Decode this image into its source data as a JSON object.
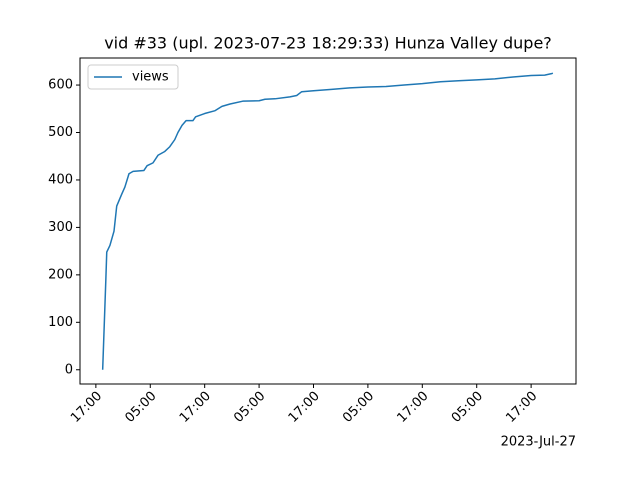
{
  "chart_data": {
    "type": "line",
    "title": "vid #33 (upl. 2023-07-23 18:29:33) Hunza Valley dupe?",
    "x_offset_label": "2023-Jul-27",
    "legend": "upper left",
    "x": [
      1.5,
      2.2,
      2.4,
      3.1,
      4,
      4.6,
      5.7,
      6.4,
      7.3,
      8.2,
      10.6,
      11.3,
      12.6,
      13.7,
      15.2,
      16.3,
      17.4,
      18.1,
      19,
      19.9,
      21.4,
      22,
      24,
      26.3,
      27.8,
      29.6,
      32.4,
      36,
      37.3,
      39.5,
      42.8,
      44.3,
      45.4,
      48,
      52,
      56,
      60,
      64,
      68,
      72,
      76,
      80,
      84,
      88,
      92,
      96,
      99,
      100.5,
      100.8
    ],
    "series": [
      {
        "name": "views",
        "color": "#1f77b4",
        "values": [
          0,
          190,
          248,
          262,
          292,
          345,
          370,
          385,
          413,
          418,
          420,
          430,
          436,
          452,
          460,
          470,
          485,
          500,
          515,
          525,
          525,
          533,
          540,
          546,
          555,
          560,
          566,
          567,
          570,
          571,
          575,
          578,
          586,
          588,
          591,
          594,
          596,
          597,
          600,
          603,
          607,
          609,
          611,
          613,
          617,
          620,
          621,
          624,
          625
        ]
      }
    ],
    "xlim": [
      -3.5,
      105.9
    ],
    "ylim": [
      -30,
      657
    ],
    "xticks": [
      {
        "value": 0,
        "label": "17:00"
      },
      {
        "value": 12,
        "label": "05:00"
      },
      {
        "value": 24,
        "label": "17:00"
      },
      {
        "value": 36,
        "label": "05:00"
      },
      {
        "value": 48,
        "label": "17:00"
      },
      {
        "value": 60,
        "label": "05:00"
      },
      {
        "value": 72,
        "label": "17:00"
      },
      {
        "value": 84,
        "label": "05:00"
      },
      {
        "value": 96,
        "label": "17:00"
      }
    ],
    "yticks": [
      0,
      100,
      200,
      300,
      400,
      500,
      600
    ]
  }
}
